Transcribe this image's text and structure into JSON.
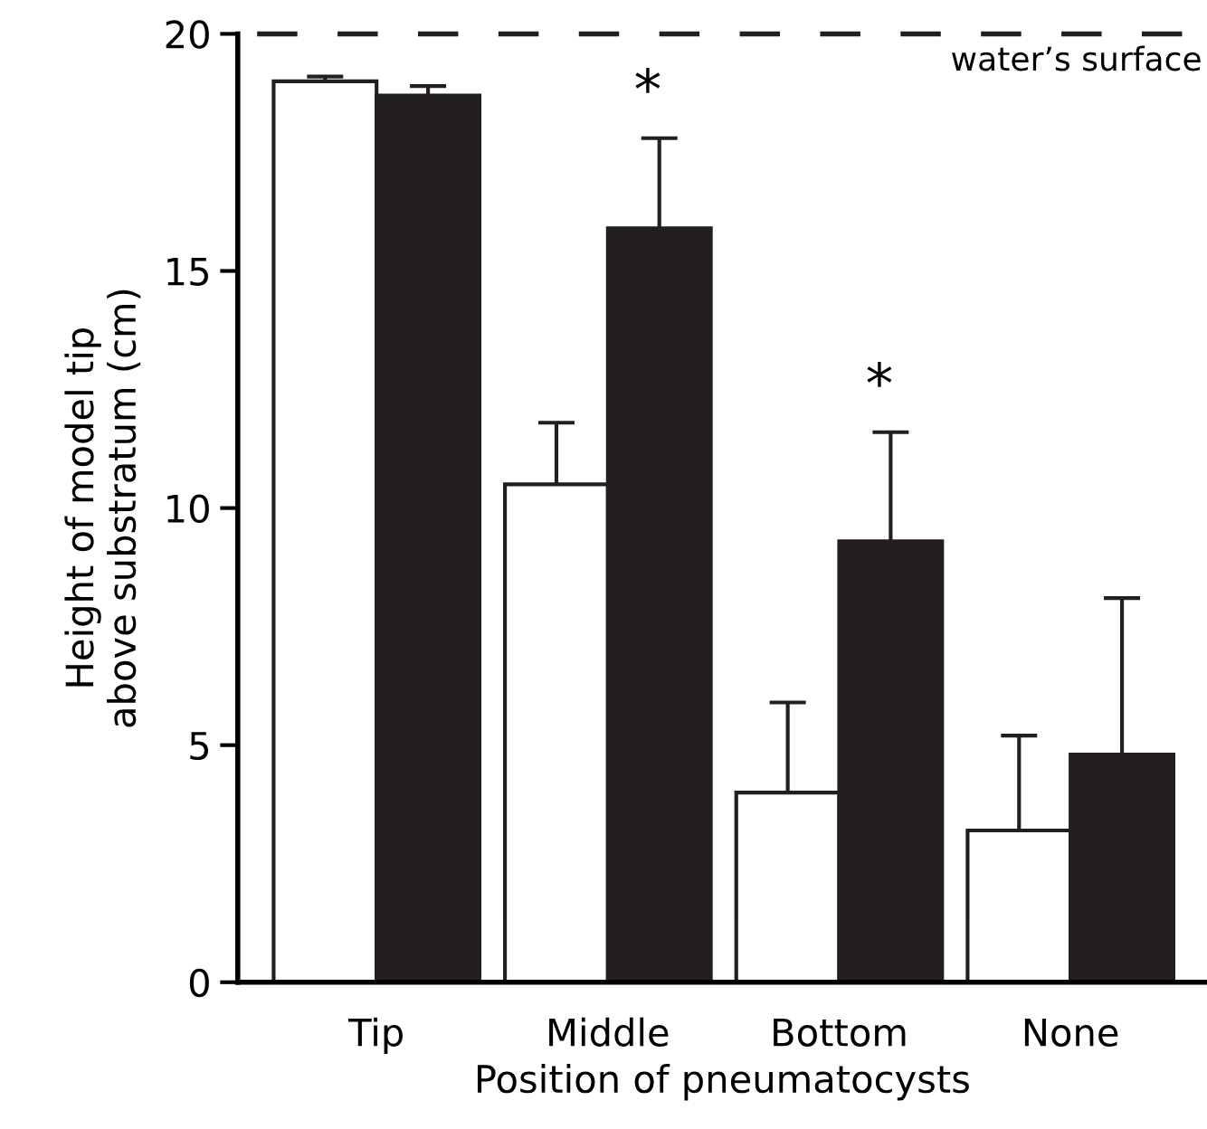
{
  "chart_data": {
    "type": "bar",
    "xlabel": "Position of pneumatocysts",
    "ylabel": "Height of model tip\nabove substratum (cm)",
    "categories": [
      "Tip",
      "Middle",
      "Bottom",
      "None"
    ],
    "series": [
      {
        "color": "#ffffff",
        "values": [
          19.0,
          10.5,
          4.0,
          3.2
        ],
        "errors": [
          [
            19.0,
            19.1
          ],
          [
            10.5,
            11.8
          ],
          [
            4.0,
            5.9
          ],
          [
            3.2,
            5.2
          ]
        ]
      },
      {
        "color": "#231f20",
        "values": [
          18.7,
          15.9,
          9.3,
          4.8
        ],
        "errors": [
          [
            18.7,
            18.9
          ],
          [
            15.9,
            17.8
          ],
          [
            9.3,
            11.6
          ],
          [
            4.8,
            8.1
          ]
        ]
      }
    ],
    "ylim": [
      0,
      20
    ],
    "yticks": [
      0,
      5,
      10,
      15,
      20
    ],
    "grid": false,
    "legend": false,
    "ref_lines": [
      {
        "axis": "y",
        "value": 20,
        "label": "water’s surface",
        "color": "#231f20",
        "line_style": "dashed"
      }
    ],
    "annotations": [
      "*",
      "*"
    ]
  }
}
